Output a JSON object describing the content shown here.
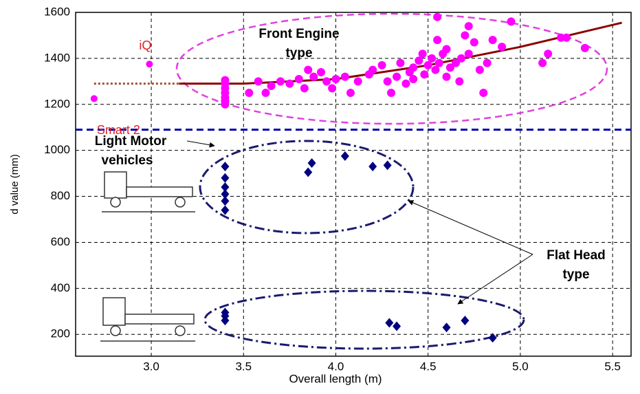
{
  "chart_data": {
    "type": "scatter",
    "x_label": "Overall length (m)",
    "y_label": "d value (mm)",
    "xlim": [
      2.59,
      5.6
    ],
    "ylim": [
      105,
      1600
    ],
    "xticks": [
      {
        "value": 3,
        "label": "3.0"
      },
      3.5,
      {
        "value": 4,
        "label": "4.0"
      },
      4.5,
      {
        "value": 5,
        "label": "5.0"
      },
      5.5
    ],
    "yticks": [
      200,
      400,
      600,
      800,
      1000,
      1200,
      1400,
      1600
    ],
    "grid": true,
    "series": [
      {
        "color": "#ff00ff",
        "marker": "circle",
        "x": [
          3.4,
          3.4,
          3.4,
          3.4,
          3.4,
          3.4,
          3.4,
          3.53,
          3.58,
          3.62,
          3.65,
          3.7,
          3.75,
          3.8,
          3.83,
          3.85,
          3.88,
          3.92,
          3.95,
          4.0,
          4.05,
          4.08,
          4.12,
          4.18,
          4.2,
          4.25,
          4.28,
          4.3,
          4.33,
          4.35,
          4.38,
          4.4,
          4.42,
          4.45,
          4.47,
          4.48,
          4.5,
          4.52,
          4.54,
          4.55,
          4.56,
          4.58,
          4.6,
          4.6,
          4.62,
          4.65,
          4.67,
          4.68,
          4.7,
          4.72,
          4.72,
          4.75,
          4.78,
          4.8,
          4.82,
          4.85,
          4.9,
          4.95,
          5.12,
          5.15,
          5.22,
          5.25,
          5.35,
          4.55,
          4.42,
          3.98
        ],
        "y": [
          1200,
          1215,
          1230,
          1250,
          1270,
          1290,
          1305,
          1250,
          1300,
          1250,
          1280,
          1300,
          1290,
          1310,
          1270,
          1350,
          1320,
          1340,
          1300,
          1310,
          1320,
          1250,
          1300,
          1330,
          1350,
          1370,
          1300,
          1250,
          1320,
          1380,
          1290,
          1340,
          1360,
          1390,
          1420,
          1330,
          1370,
          1400,
          1350,
          1480,
          1380,
          1420,
          1320,
          1440,
          1360,
          1380,
          1300,
          1400,
          1500,
          1540,
          1420,
          1470,
          1350,
          1250,
          1380,
          1480,
          1450,
          1560,
          1380,
          1420,
          1490,
          1490,
          1445,
          1580,
          1310,
          1270
        ]
      },
      {
        "color": "#000080",
        "marker": "diamond",
        "x": [
          3.4,
          3.4,
          3.4,
          3.4,
          3.4,
          3.4,
          3.85,
          3.87,
          4.05,
          4.2,
          4.28,
          3.4,
          3.4,
          3.4,
          4.29,
          4.33,
          4.6,
          4.7,
          4.85
        ],
        "y": [
          930,
          880,
          840,
          810,
          780,
          740,
          905,
          945,
          975,
          930,
          935,
          295,
          280,
          260,
          250,
          235,
          230,
          260,
          185
        ]
      }
    ],
    "named_points": [
      {
        "label": "iQ",
        "x": 2.99,
        "y": 1375
      },
      {
        "label": "Smart 2",
        "x": 2.69,
        "y": 1225
      }
    ],
    "trend": {
      "color": "#8b0000",
      "x": [
        3.15,
        3.5,
        4.0,
        4.5,
        5.0,
        5.55
      ],
      "y": [
        1290,
        1290,
        1310,
        1370,
        1450,
        1555
      ]
    },
    "reference": {
      "color": "#a0522d",
      "x": [
        2.69,
        3.15
      ],
      "y": [
        1290,
        1290
      ]
    },
    "threshold": {
      "value": 1090,
      "color": "#0000aa"
    },
    "annotations": {
      "front_engine": [
        "Front Engine",
        "type"
      ],
      "light_motor": [
        "Light Motor",
        "vehicles"
      ],
      "flat_head": [
        "Flat Head",
        "type"
      ]
    }
  }
}
